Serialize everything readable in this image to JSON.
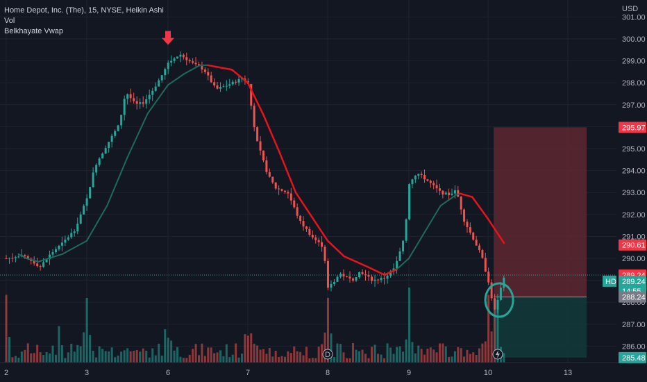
{
  "legend": {
    "title": "Home Depot, Inc. (The), 15, NYSE, Heikin Ashi",
    "vol": "Vol",
    "indicator": "Belkhayate Vwap"
  },
  "currency": "USD",
  "symbol": "HD",
  "countdown": "14:55",
  "colors": {
    "background": "#131722",
    "up": "#26a69a",
    "down": "#ef5350",
    "vwap_up": "#1e6b5c",
    "vwap_down": "#e8141c",
    "grid": "#1f2330",
    "stop_zone": "#5d2730",
    "target_zone": "#12393a"
  },
  "chart_data": {
    "type": "candlestick",
    "chart_style": "Heikin Ashi",
    "interval": "15",
    "exchange": "NYSE",
    "ylim": [
      285.5,
      301.2
    ],
    "y_ticks": [
      "286.00",
      "287.00",
      "288.00",
      "289.00",
      "290.00",
      "291.00",
      "292.00",
      "293.00",
      "294.00",
      "295.00",
      "296.00",
      "297.00",
      "298.00",
      "299.00",
      "300.00",
      "301.00"
    ],
    "x_ticks": [
      {
        "label": "2",
        "day": 0
      },
      {
        "label": "3",
        "day": 1
      },
      {
        "label": "6",
        "day": 2
      },
      {
        "label": "7",
        "day": 3
      },
      {
        "label": "8",
        "day": 4
      },
      {
        "label": "9",
        "day": 5
      },
      {
        "label": "10",
        "day": 6
      },
      {
        "label": "13",
        "day": 7
      }
    ],
    "x_range": [
      -0.02,
      7.08
    ],
    "close_path": [
      [
        0.0,
        290.0
      ],
      [
        0.2,
        290.1
      ],
      [
        0.35,
        289.8
      ],
      [
        0.42,
        289.6
      ],
      [
        0.55,
        290.2
      ],
      [
        0.7,
        290.7
      ],
      [
        0.85,
        291.3
      ],
      [
        1.0,
        292.7
      ],
      [
        1.1,
        294.2
      ],
      [
        1.25,
        295.2
      ],
      [
        1.4,
        296.1
      ],
      [
        1.48,
        297.6
      ],
      [
        1.6,
        297.0
      ],
      [
        1.7,
        297.1
      ],
      [
        1.82,
        297.7
      ],
      [
        1.95,
        298.5
      ],
      [
        2.0,
        298.9
      ],
      [
        2.15,
        299.3
      ],
      [
        2.3,
        298.9
      ],
      [
        2.45,
        298.6
      ],
      [
        2.6,
        297.7
      ],
      [
        2.75,
        297.9
      ],
      [
        2.93,
        298.2
      ],
      [
        3.0,
        298.0
      ],
      [
        3.1,
        295.5
      ],
      [
        3.25,
        293.8
      ],
      [
        3.35,
        293.2
      ],
      [
        3.5,
        293.0
      ],
      [
        3.65,
        291.7
      ],
      [
        3.8,
        291.0
      ],
      [
        3.95,
        290.5
      ],
      [
        4.0,
        288.6
      ],
      [
        4.15,
        289.3
      ],
      [
        4.3,
        289.0
      ],
      [
        4.4,
        289.4
      ],
      [
        4.55,
        289.0
      ],
      [
        4.7,
        289.1
      ],
      [
        4.83,
        289.6
      ],
      [
        4.95,
        291.0
      ],
      [
        5.0,
        293.4
      ],
      [
        5.1,
        293.9
      ],
      [
        5.25,
        293.5
      ],
      [
        5.4,
        293.0
      ],
      [
        5.5,
        292.9
      ],
      [
        5.6,
        293.1
      ],
      [
        5.7,
        291.7
      ],
      [
        5.8,
        291.0
      ],
      [
        5.92,
        290.1
      ],
      [
        6.0,
        289.0
      ],
      [
        6.08,
        287.6
      ],
      [
        6.15,
        288.5
      ],
      [
        6.2,
        289.2
      ]
    ],
    "vwap": [
      [
        0.15,
        290.2,
        "up"
      ],
      [
        0.25,
        290.0,
        "up"
      ],
      [
        0.4,
        289.85,
        "up"
      ],
      [
        0.7,
        290.2,
        "up"
      ],
      [
        1.0,
        290.8,
        "up"
      ],
      [
        1.25,
        292.4,
        "up"
      ],
      [
        1.5,
        294.6,
        "up"
      ],
      [
        1.75,
        296.6,
        "up"
      ],
      [
        2.0,
        297.9,
        "up"
      ],
      [
        2.2,
        298.4,
        "up"
      ],
      [
        2.4,
        298.8,
        "up"
      ],
      [
        2.5,
        298.8,
        "down"
      ],
      [
        2.8,
        298.6,
        "down"
      ],
      [
        3.0,
        298.0,
        "down"
      ],
      [
        3.2,
        296.5,
        "down"
      ],
      [
        3.4,
        294.8,
        "down"
      ],
      [
        3.6,
        293.0,
        "down"
      ],
      [
        3.8,
        291.9,
        "down"
      ],
      [
        4.0,
        290.8,
        "down"
      ],
      [
        4.2,
        290.1,
        "down"
      ],
      [
        4.5,
        289.6,
        "down"
      ],
      [
        4.7,
        289.25,
        "down"
      ],
      [
        4.85,
        289.5,
        "up"
      ],
      [
        5.0,
        290.0,
        "up"
      ],
      [
        5.2,
        291.2,
        "up"
      ],
      [
        5.4,
        292.4,
        "up"
      ],
      [
        5.6,
        292.9,
        "up"
      ],
      [
        5.65,
        292.95,
        "down"
      ],
      [
        5.8,
        292.8,
        "down"
      ],
      [
        6.0,
        291.8,
        "down"
      ],
      [
        6.2,
        290.7,
        "down"
      ]
    ],
    "volume_spikes": [
      [
        0.0,
        0.65
      ],
      [
        0.65,
        0.35
      ],
      [
        1.0,
        0.62
      ],
      [
        3.05,
        0.28
      ],
      [
        4.0,
        0.62
      ],
      [
        5.0,
        0.72
      ],
      [
        6.0,
        0.65
      ],
      [
        6.1,
        0.55
      ]
    ],
    "position_zones": {
      "entry_price": 288.24,
      "stop_price": 295.97,
      "target_price": 285.48,
      "x_start": 6.07,
      "x_end": 7.25
    },
    "markers": [
      {
        "kind": "sell-arrow",
        "day": 2.0,
        "price": 299.6
      },
      {
        "kind": "circle",
        "day": 6.14,
        "price": 288.1
      }
    ],
    "price_labels": [
      {
        "label": "295.97",
        "price": 295.97,
        "style": "red"
      },
      {
        "label": "290.61",
        "price": 290.61,
        "style": "red"
      },
      {
        "label": "289.24",
        "price": 289.24,
        "style": "red"
      },
      {
        "label": "289.24",
        "price": 288.96,
        "style": "teal",
        "with_symbol": true
      },
      {
        "label": "288.24",
        "price": 288.24,
        "style": "gray"
      },
      {
        "label": "285.48",
        "price": 285.48,
        "style": "teal"
      }
    ],
    "last_price": 289.24,
    "vwap_last": 290.61
  }
}
